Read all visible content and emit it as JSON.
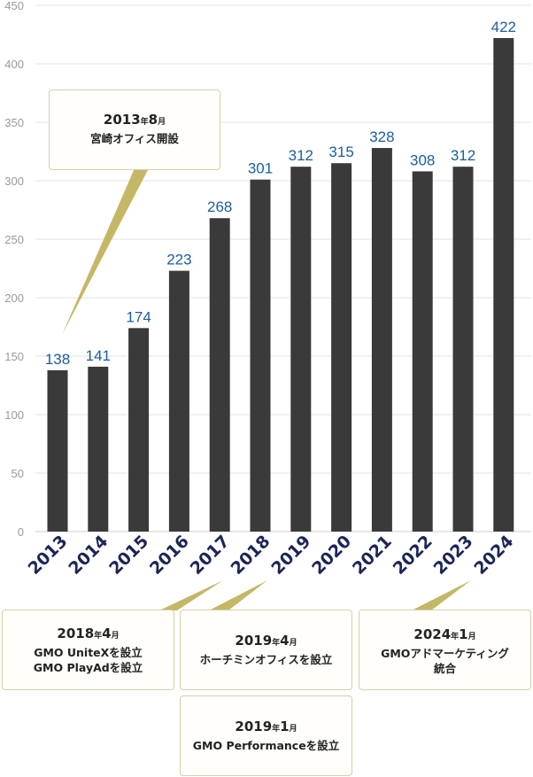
{
  "chart_data": {
    "type": "bar",
    "categories": [
      "2013",
      "2014",
      "2015",
      "2016",
      "2017",
      "2018",
      "2019",
      "2020",
      "2021",
      "2022",
      "2023",
      "2024"
    ],
    "values": [
      138,
      141,
      174,
      223,
      268,
      301,
      312,
      315,
      328,
      308,
      312,
      422
    ],
    "data_labels": [
      "138",
      "141",
      "174",
      "223",
      "268",
      "301",
      "312",
      "315",
      "328",
      "308",
      "312",
      "422"
    ],
    "ylim": [
      0,
      450
    ],
    "yticks": [
      "0",
      "50",
      "100",
      "150",
      "200",
      "250",
      "300",
      "350",
      "400",
      "450"
    ],
    "grid": true,
    "colors": {
      "bar": "#3a3a3a",
      "value_label": "#1a5e9e",
      "category_label": "#1c2556",
      "grid": "#e3e3e3",
      "callout_pointer": "#c4b766"
    }
  },
  "callouts": {
    "c2013": {
      "year": "2013",
      "year_suffix": "年",
      "month": "8",
      "month_suffix": "月",
      "lines": [
        "宮崎オフィス開設"
      ]
    },
    "c2018": {
      "year": "2018",
      "year_suffix": "年",
      "month": "4",
      "month_suffix": "月",
      "lines": [
        "GMO UniteXを設立",
        "GMO PlayAdを設立"
      ]
    },
    "c2019a": {
      "year": "2019",
      "year_suffix": "年",
      "month": "4",
      "month_suffix": "月",
      "lines": [
        "ホーチミンオフィスを設立"
      ]
    },
    "c2019b": {
      "year": "2019",
      "year_suffix": "年",
      "month": "1",
      "month_suffix": "月",
      "lines": [
        "GMO Performanceを設立"
      ]
    },
    "c2024": {
      "year": "2024",
      "year_suffix": "年",
      "month": "1",
      "month_suffix": "月",
      "lines": [
        "GMOアドマーケティング",
        "統合"
      ]
    }
  }
}
